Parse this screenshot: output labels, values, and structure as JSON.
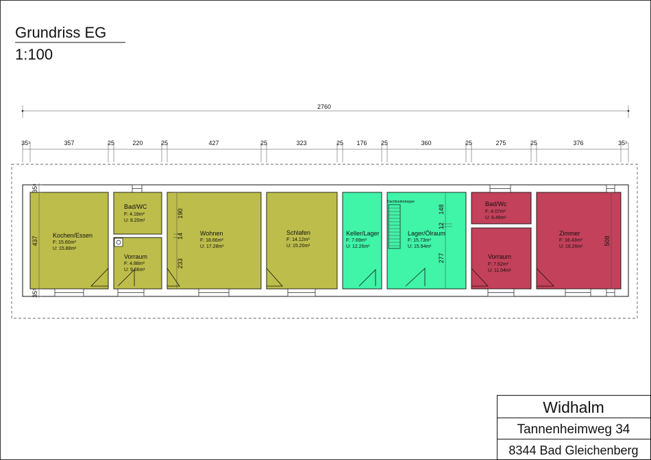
{
  "title": "Grundriss EG",
  "scale": "1:100",
  "colors": {
    "olive": "#bdbd4b",
    "green": "#40f4a8",
    "red": "#c3415a",
    "wall": "#ffffff",
    "line": "#111111"
  },
  "dimensions": {
    "overall": "2760",
    "horizontal": [
      "35⁵",
      "357",
      "25",
      "220",
      "25",
      "427",
      "25",
      "323",
      "25",
      "176",
      "25",
      "360",
      "25",
      "275",
      "25",
      "376",
      "35⁵"
    ],
    "left": [
      "35⁵",
      "437",
      "35⁵"
    ],
    "wohnen": [
      "190",
      "14",
      "233"
    ],
    "lager": [
      "148",
      "12",
      "277"
    ],
    "right": "508"
  },
  "rooms": [
    {
      "name": "Kochen/Essen",
      "area": "F: 15.60m²",
      "perimeter": "U: 15.88m¹"
    },
    {
      "name": "Bad/WC",
      "area": "F: 4.18m²",
      "perimeter": "U: 8.20m¹"
    },
    {
      "name": "Vorraum",
      "area": "F: 4.88m²",
      "perimeter": "U: 9.66m¹"
    },
    {
      "name": "Wohnen",
      "area": "F: 18.66m²",
      "perimeter": "U: 17.28m¹"
    },
    {
      "name": "Schlafen",
      "area": "F: 14.12m²",
      "perimeter": "U: 15.20m¹"
    },
    {
      "name": "Keller/Lager",
      "area": "F: 7.69m²",
      "perimeter": "U: 12.26m¹"
    },
    {
      "name": "Lager/Ölraum",
      "area": "F: 15.73m²",
      "perimeter": "U: 15.94m¹"
    },
    {
      "name": "Bad/Wc",
      "area": "F: 4.07m²",
      "perimeter": "U: 8.49m¹"
    },
    {
      "name": "Vorraum",
      "area": "F: 7.62m²",
      "perimeter": "U: 11.04m¹"
    },
    {
      "name": "Zimmer",
      "area": "F: 16.43m²",
      "perimeter": "U: 16.26m¹"
    }
  ],
  "stair_label": "Dachbodentreppe",
  "title_block": {
    "name": "Widhalm",
    "street": "Tannenheimweg 34",
    "city": "8344 Bad Gleichenberg"
  }
}
